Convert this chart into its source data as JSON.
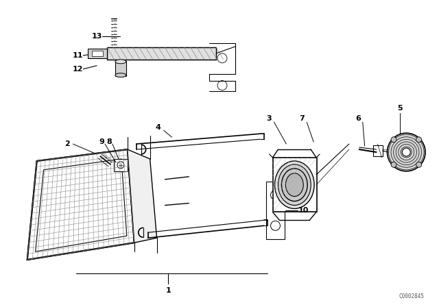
{
  "bg_color": "#ffffff",
  "line_color": "#000000",
  "fig_width": 6.4,
  "fig_height": 4.48,
  "dpi": 100,
  "watermark": "C0002845"
}
